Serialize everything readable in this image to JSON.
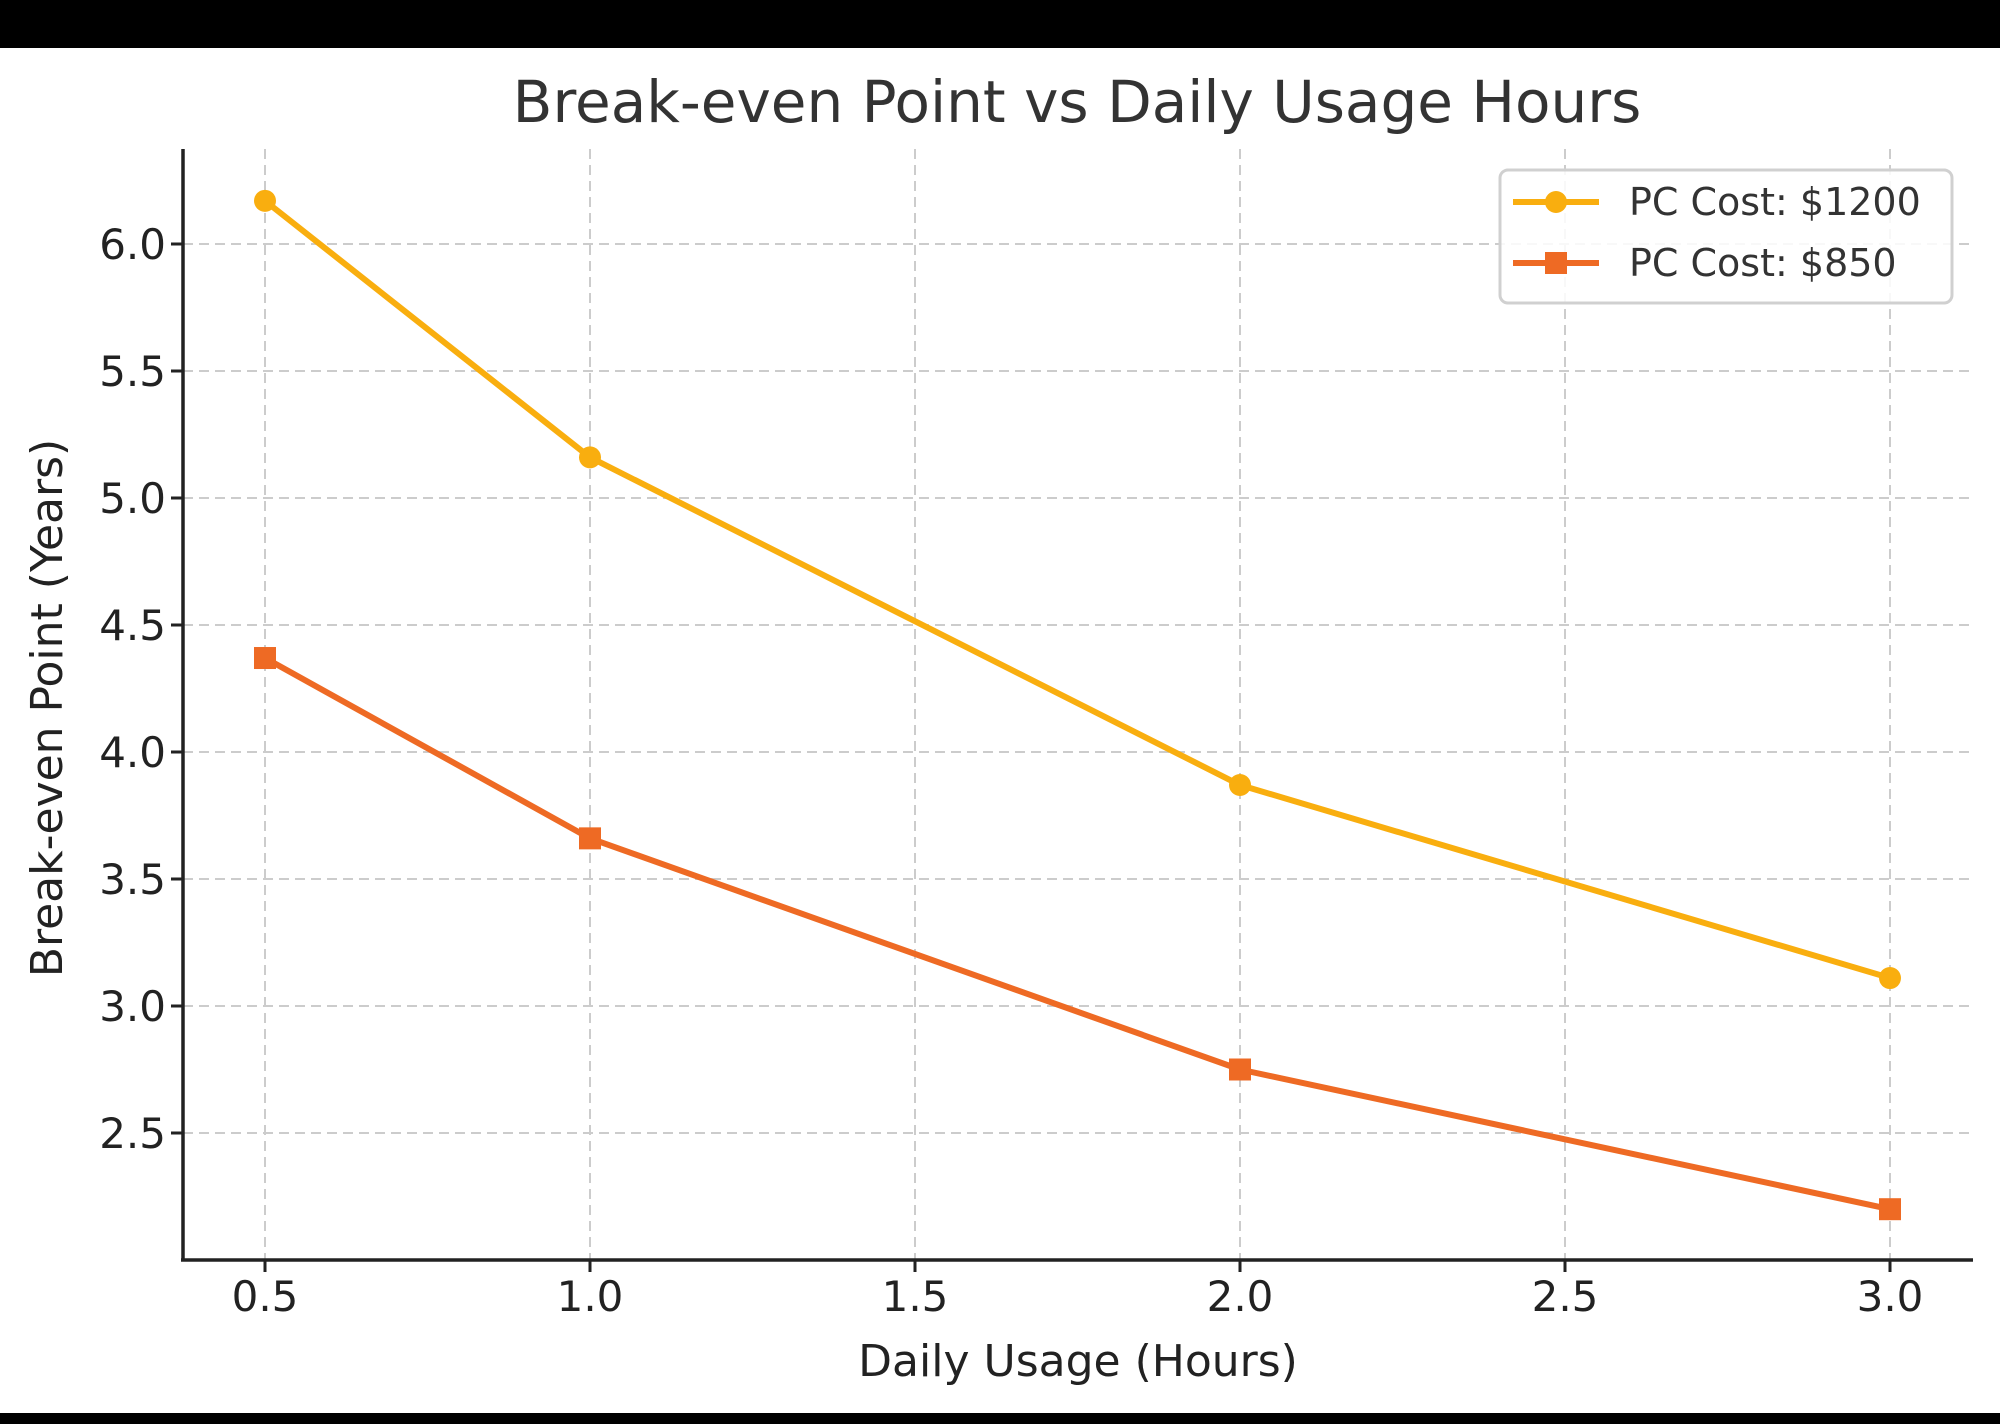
{
  "chart_data": {
    "type": "line",
    "title": "Break-even Point vs Daily Usage Hours",
    "xlabel": "Daily Usage (Hours)",
    "ylabel": "Break-even Point (Years)",
    "x": [
      0.5,
      1.0,
      2.0,
      3.0
    ],
    "series": [
      {
        "name": "PC Cost: $1200",
        "color": "#F9AE0F",
        "marker": "circle",
        "values": [
          6.17,
          5.16,
          3.87,
          3.11
        ]
      },
      {
        "name": "PC Cost: $850",
        "color": "#EE6A24",
        "marker": "square",
        "values": [
          4.37,
          3.66,
          2.75,
          2.2
        ]
      }
    ],
    "xticks": [
      "0.5",
      "1.0",
      "1.5",
      "2.0",
      "2.5",
      "3.0"
    ],
    "yticks": [
      "2.5",
      "3.0",
      "3.5",
      "4.0",
      "4.5",
      "5.0",
      "5.5",
      "6.0"
    ],
    "xlim": [
      0.375,
      3.125
    ],
    "ylim": [
      2.0,
      6.33
    ],
    "grid": true,
    "grid_style": "dashed",
    "legend_position": "upper right"
  }
}
